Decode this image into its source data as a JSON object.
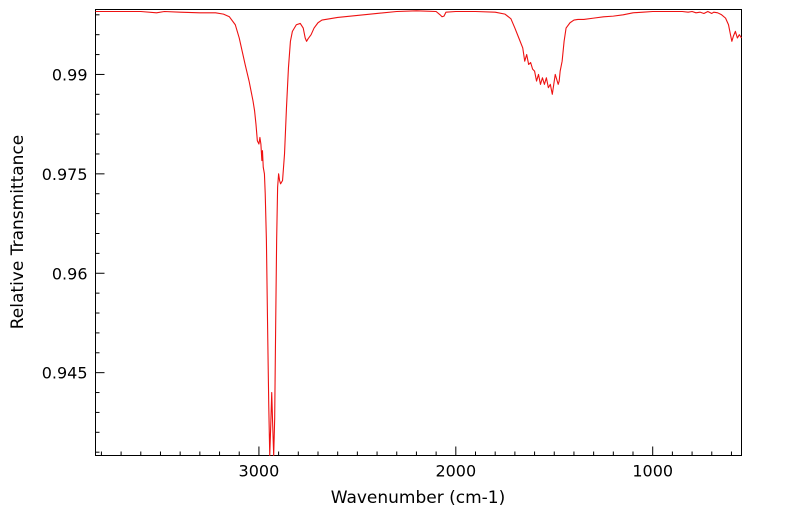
{
  "chart_data": {
    "type": "line",
    "title": "",
    "xlabel": "Wavenumber (cm-1)",
    "ylabel": "Relative Transmittance",
    "xlim": [
      3830,
      549
    ],
    "ylim": [
      0.9325,
      0.9998
    ],
    "x_reversed": true,
    "grid": false,
    "legend": "none",
    "x_ticks": [
      3000,
      2000,
      1000
    ],
    "x_tick_labels": [
      "3000",
      "2000",
      "1000"
    ],
    "y_ticks": [
      0.945,
      0.96,
      0.975,
      0.99
    ],
    "y_tick_labels": [
      "0.945",
      "0.96",
      "0.975",
      "0.99"
    ],
    "series": [
      {
        "color": "#ee1111",
        "points": [
          [
            3830,
            0.9995
          ],
          [
            3700,
            0.9995
          ],
          [
            3600,
            0.9995
          ],
          [
            3520,
            0.9993
          ],
          [
            3480,
            0.9995
          ],
          [
            3400,
            0.9994
          ],
          [
            3300,
            0.9993
          ],
          [
            3220,
            0.9993
          ],
          [
            3180,
            0.9991
          ],
          [
            3150,
            0.9987
          ],
          [
            3120,
            0.9975
          ],
          [
            3100,
            0.9955
          ],
          [
            3085,
            0.9935
          ],
          [
            3070,
            0.9915
          ],
          [
            3050,
            0.989
          ],
          [
            3040,
            0.9875
          ],
          [
            3030,
            0.986
          ],
          [
            3022,
            0.9845
          ],
          [
            3015,
            0.9825
          ],
          [
            3008,
            0.98
          ],
          [
            3000,
            0.9795
          ],
          [
            2995,
            0.9805
          ],
          [
            2990,
            0.9795
          ],
          [
            2985,
            0.977
          ],
          [
            2982,
            0.9785
          ],
          [
            2978,
            0.976
          ],
          [
            2972,
            0.975
          ],
          [
            2968,
            0.972
          ],
          [
            2962,
            0.965
          ],
          [
            2955,
            0.95
          ],
          [
            2950,
            0.94
          ],
          [
            2945,
            0.9325
          ],
          [
            2940,
            0.937
          ],
          [
            2935,
            0.942
          ],
          [
            2930,
            0.937
          ],
          [
            2925,
            0.9325
          ],
          [
            2920,
            0.938
          ],
          [
            2915,
            0.952
          ],
          [
            2910,
            0.965
          ],
          [
            2905,
            0.973
          ],
          [
            2900,
            0.975
          ],
          [
            2895,
            0.974
          ],
          [
            2890,
            0.9735
          ],
          [
            2880,
            0.974
          ],
          [
            2870,
            0.978
          ],
          [
            2860,
            0.985
          ],
          [
            2850,
            0.991
          ],
          [
            2840,
            0.995
          ],
          [
            2830,
            0.9965
          ],
          [
            2810,
            0.9975
          ],
          [
            2790,
            0.9977
          ],
          [
            2775,
            0.997
          ],
          [
            2765,
            0.9955
          ],
          [
            2758,
            0.995
          ],
          [
            2750,
            0.9954
          ],
          [
            2735,
            0.996
          ],
          [
            2720,
            0.997
          ],
          [
            2700,
            0.9978
          ],
          [
            2680,
            0.9982
          ],
          [
            2600,
            0.9986
          ],
          [
            2500,
            0.9989
          ],
          [
            2400,
            0.9992
          ],
          [
            2300,
            0.9995
          ],
          [
            2200,
            0.9996
          ],
          [
            2100,
            0.9995
          ],
          [
            2080,
            0.999
          ],
          [
            2070,
            0.9987
          ],
          [
            2060,
            0.9988
          ],
          [
            2050,
            0.9994
          ],
          [
            2000,
            0.9995
          ],
          [
            1900,
            0.9995
          ],
          [
            1800,
            0.9994
          ],
          [
            1750,
            0.9991
          ],
          [
            1720,
            0.9984
          ],
          [
            1700,
            0.997
          ],
          [
            1680,
            0.9955
          ],
          [
            1660,
            0.994
          ],
          [
            1650,
            0.992
          ],
          [
            1640,
            0.993
          ],
          [
            1630,
            0.9915
          ],
          [
            1620,
            0.9918
          ],
          [
            1610,
            0.9908
          ],
          [
            1600,
            0.9905
          ],
          [
            1590,
            0.989
          ],
          [
            1580,
            0.99
          ],
          [
            1570,
            0.9885
          ],
          [
            1560,
            0.9895
          ],
          [
            1550,
            0.9885
          ],
          [
            1540,
            0.9895
          ],
          [
            1530,
            0.988
          ],
          [
            1520,
            0.9885
          ],
          [
            1510,
            0.987
          ],
          [
            1500,
            0.989
          ],
          [
            1495,
            0.99
          ],
          [
            1490,
            0.9895
          ],
          [
            1480,
            0.9885
          ],
          [
            1475,
            0.989
          ],
          [
            1470,
            0.9905
          ],
          [
            1460,
            0.992
          ],
          [
            1450,
            0.995
          ],
          [
            1440,
            0.997
          ],
          [
            1420,
            0.9978
          ],
          [
            1400,
            0.9982
          ],
          [
            1380,
            0.9983
          ],
          [
            1350,
            0.9983
          ],
          [
            1300,
            0.9985
          ],
          [
            1250,
            0.9987
          ],
          [
            1200,
            0.9988
          ],
          [
            1150,
            0.999
          ],
          [
            1100,
            0.9993
          ],
          [
            1050,
            0.9994
          ],
          [
            1000,
            0.9995
          ],
          [
            900,
            0.9995
          ],
          [
            850,
            0.9995
          ],
          [
            820,
            0.9994
          ],
          [
            800,
            0.9995
          ],
          [
            780,
            0.9993
          ],
          [
            760,
            0.9994
          ],
          [
            740,
            0.9992
          ],
          [
            720,
            0.9995
          ],
          [
            700,
            0.9992
          ],
          [
            690,
            0.9994
          ],
          [
            670,
            0.9993
          ],
          [
            650,
            0.999
          ],
          [
            630,
            0.9985
          ],
          [
            615,
            0.9975
          ],
          [
            605,
            0.996
          ],
          [
            598,
            0.995
          ],
          [
            590,
            0.9958
          ],
          [
            580,
            0.9965
          ],
          [
            570,
            0.9955
          ],
          [
            560,
            0.996
          ],
          [
            549,
            0.9955
          ]
        ]
      }
    ]
  }
}
